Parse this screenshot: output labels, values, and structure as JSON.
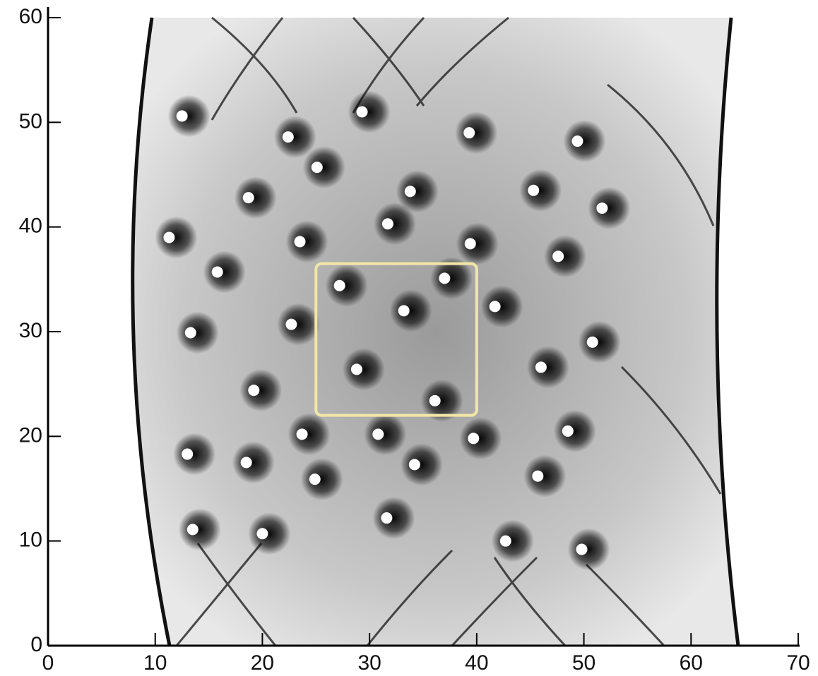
{
  "chart_data": {
    "type": "scatter",
    "xlim": [
      0,
      70
    ],
    "ylim": [
      0,
      60
    ],
    "xticks": [
      0,
      10,
      20,
      30,
      40,
      50,
      60,
      70
    ],
    "yticks": [
      0,
      10,
      20,
      30,
      40,
      50,
      60
    ],
    "color": "#ffffff",
    "x": [
      12.5,
      22.4,
      29.3,
      25.1,
      18.7,
      33.8,
      39.3,
      49.4,
      45.3,
      51.7,
      31.7,
      39.4,
      23.5,
      11.3,
      15.8,
      27.2,
      37.0,
      41.7,
      33.2,
      47.6,
      13.3,
      22.7,
      50.8,
      28.8,
      46.0,
      19.2,
      36.1,
      23.7,
      30.8,
      39.7,
      48.5,
      13.0,
      18.5,
      34.2,
      24.9,
      45.7,
      31.6,
      13.5,
      20.0,
      42.7,
      49.8
    ],
    "values": [
      50.6,
      48.6,
      51.0,
      45.7,
      42.8,
      43.4,
      49.0,
      48.2,
      43.5,
      41.8,
      40.3,
      38.4,
      38.6,
      39.0,
      35.7,
      34.4,
      35.1,
      32.4,
      32.0,
      37.2,
      29.9,
      30.7,
      29.0,
      26.4,
      26.6,
      24.4,
      23.4,
      20.2,
      20.2,
      19.8,
      20.5,
      18.3,
      17.5,
      17.3,
      15.9,
      16.2,
      12.2,
      11.1,
      10.7,
      10.0,
      9.2
    ],
    "rectangle": {
      "x": [
        25,
        40
      ],
      "y": [
        22,
        36.5
      ],
      "color": "#f3e6a6"
    }
  }
}
